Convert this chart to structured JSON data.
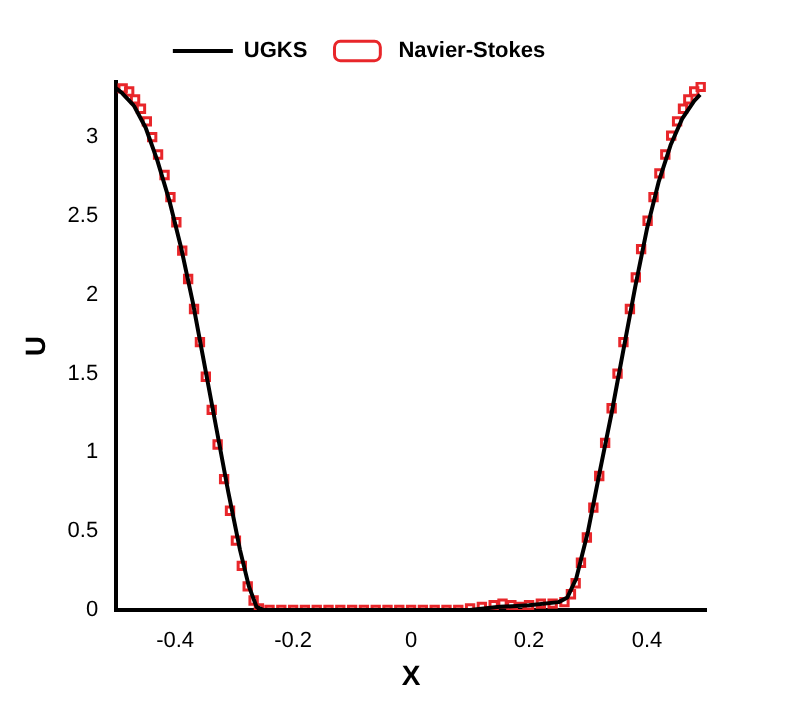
{
  "chart_data": {
    "type": "line",
    "xlabel": "X",
    "ylabel": "U",
    "xlim": [
      -0.5,
      0.5
    ],
    "ylim": [
      0,
      3.35
    ],
    "xticks": [
      -0.4,
      -0.2,
      0,
      0.2,
      0.4
    ],
    "yticks": [
      0,
      0.5,
      1,
      1.5,
      2,
      2.5,
      3
    ],
    "grid": false,
    "legend": "top",
    "series": [
      {
        "name": "UGKS",
        "type": "line",
        "color": "#000000",
        "marker": "none",
        "line_style": "solid",
        "x": [
          -0.5,
          -0.49,
          -0.47,
          -0.45,
          -0.43,
          -0.41,
          -0.39,
          -0.37,
          -0.35,
          -0.33,
          -0.31,
          -0.29,
          -0.275,
          -0.262,
          -0.25,
          0,
          0.1,
          0.15,
          0.2,
          0.25,
          0.265,
          0.28,
          0.3,
          0.32,
          0.34,
          0.36,
          0.38,
          0.4,
          0.42,
          0.44,
          0.46,
          0.48,
          0.49
        ],
        "values": [
          3.31,
          3.28,
          3.2,
          3.06,
          2.85,
          2.6,
          2.3,
          1.95,
          1.55,
          1.15,
          0.75,
          0.38,
          0.15,
          0.02,
          0,
          0,
          0,
          0.02,
          0.03,
          0.05,
          0.08,
          0.2,
          0.5,
          0.88,
          1.25,
          1.65,
          2.05,
          2.42,
          2.72,
          2.95,
          3.12,
          3.23,
          3.27
        ]
      },
      {
        "name": "Navier-Stokes",
        "type": "scatter",
        "color": "#e8262a",
        "marker": "square",
        "x": [
          -0.489,
          -0.478,
          -0.468,
          -0.458,
          -0.448,
          -0.439,
          -0.429,
          -0.418,
          -0.408,
          -0.398,
          -0.388,
          -0.378,
          -0.368,
          -0.358,
          -0.348,
          -0.338,
          -0.328,
          -0.317,
          -0.307,
          -0.297,
          -0.287,
          -0.277,
          -0.267,
          -0.258,
          -0.24,
          -0.22,
          -0.2,
          -0.18,
          -0.16,
          -0.14,
          -0.12,
          -0.1,
          -0.08,
          -0.06,
          -0.04,
          -0.02,
          0,
          0.02,
          0.04,
          0.06,
          0.08,
          0.1,
          0.12,
          0.14,
          0.155,
          0.17,
          0.185,
          0.2,
          0.22,
          0.24,
          0.26,
          0.271,
          0.279,
          0.288,
          0.298,
          0.309,
          0.319,
          0.329,
          0.34,
          0.35,
          0.36,
          0.371,
          0.381,
          0.39,
          0.401,
          0.411,
          0.421,
          0.431,
          0.441,
          0.451,
          0.461,
          0.47,
          0.48,
          0.491
        ],
        "values": [
          3.31,
          3.29,
          3.24,
          3.18,
          3.1,
          3.0,
          2.89,
          2.76,
          2.62,
          2.46,
          2.28,
          2.1,
          1.91,
          1.7,
          1.48,
          1.27,
          1.05,
          0.83,
          0.63,
          0.44,
          0.28,
          0.15,
          0.06,
          0.01,
          0,
          0,
          0,
          0,
          0,
          0,
          0,
          0,
          0,
          0,
          0,
          0,
          0,
          0,
          0,
          0,
          0,
          0.01,
          0.02,
          0.03,
          0.04,
          0.03,
          0.02,
          0.03,
          0.04,
          0.04,
          0.05,
          0.1,
          0.17,
          0.3,
          0.46,
          0.65,
          0.85,
          1.06,
          1.28,
          1.5,
          1.7,
          1.91,
          2.11,
          2.29,
          2.47,
          2.62,
          2.77,
          2.89,
          3.01,
          3.1,
          3.18,
          3.24,
          3.29,
          3.32
        ]
      }
    ]
  }
}
